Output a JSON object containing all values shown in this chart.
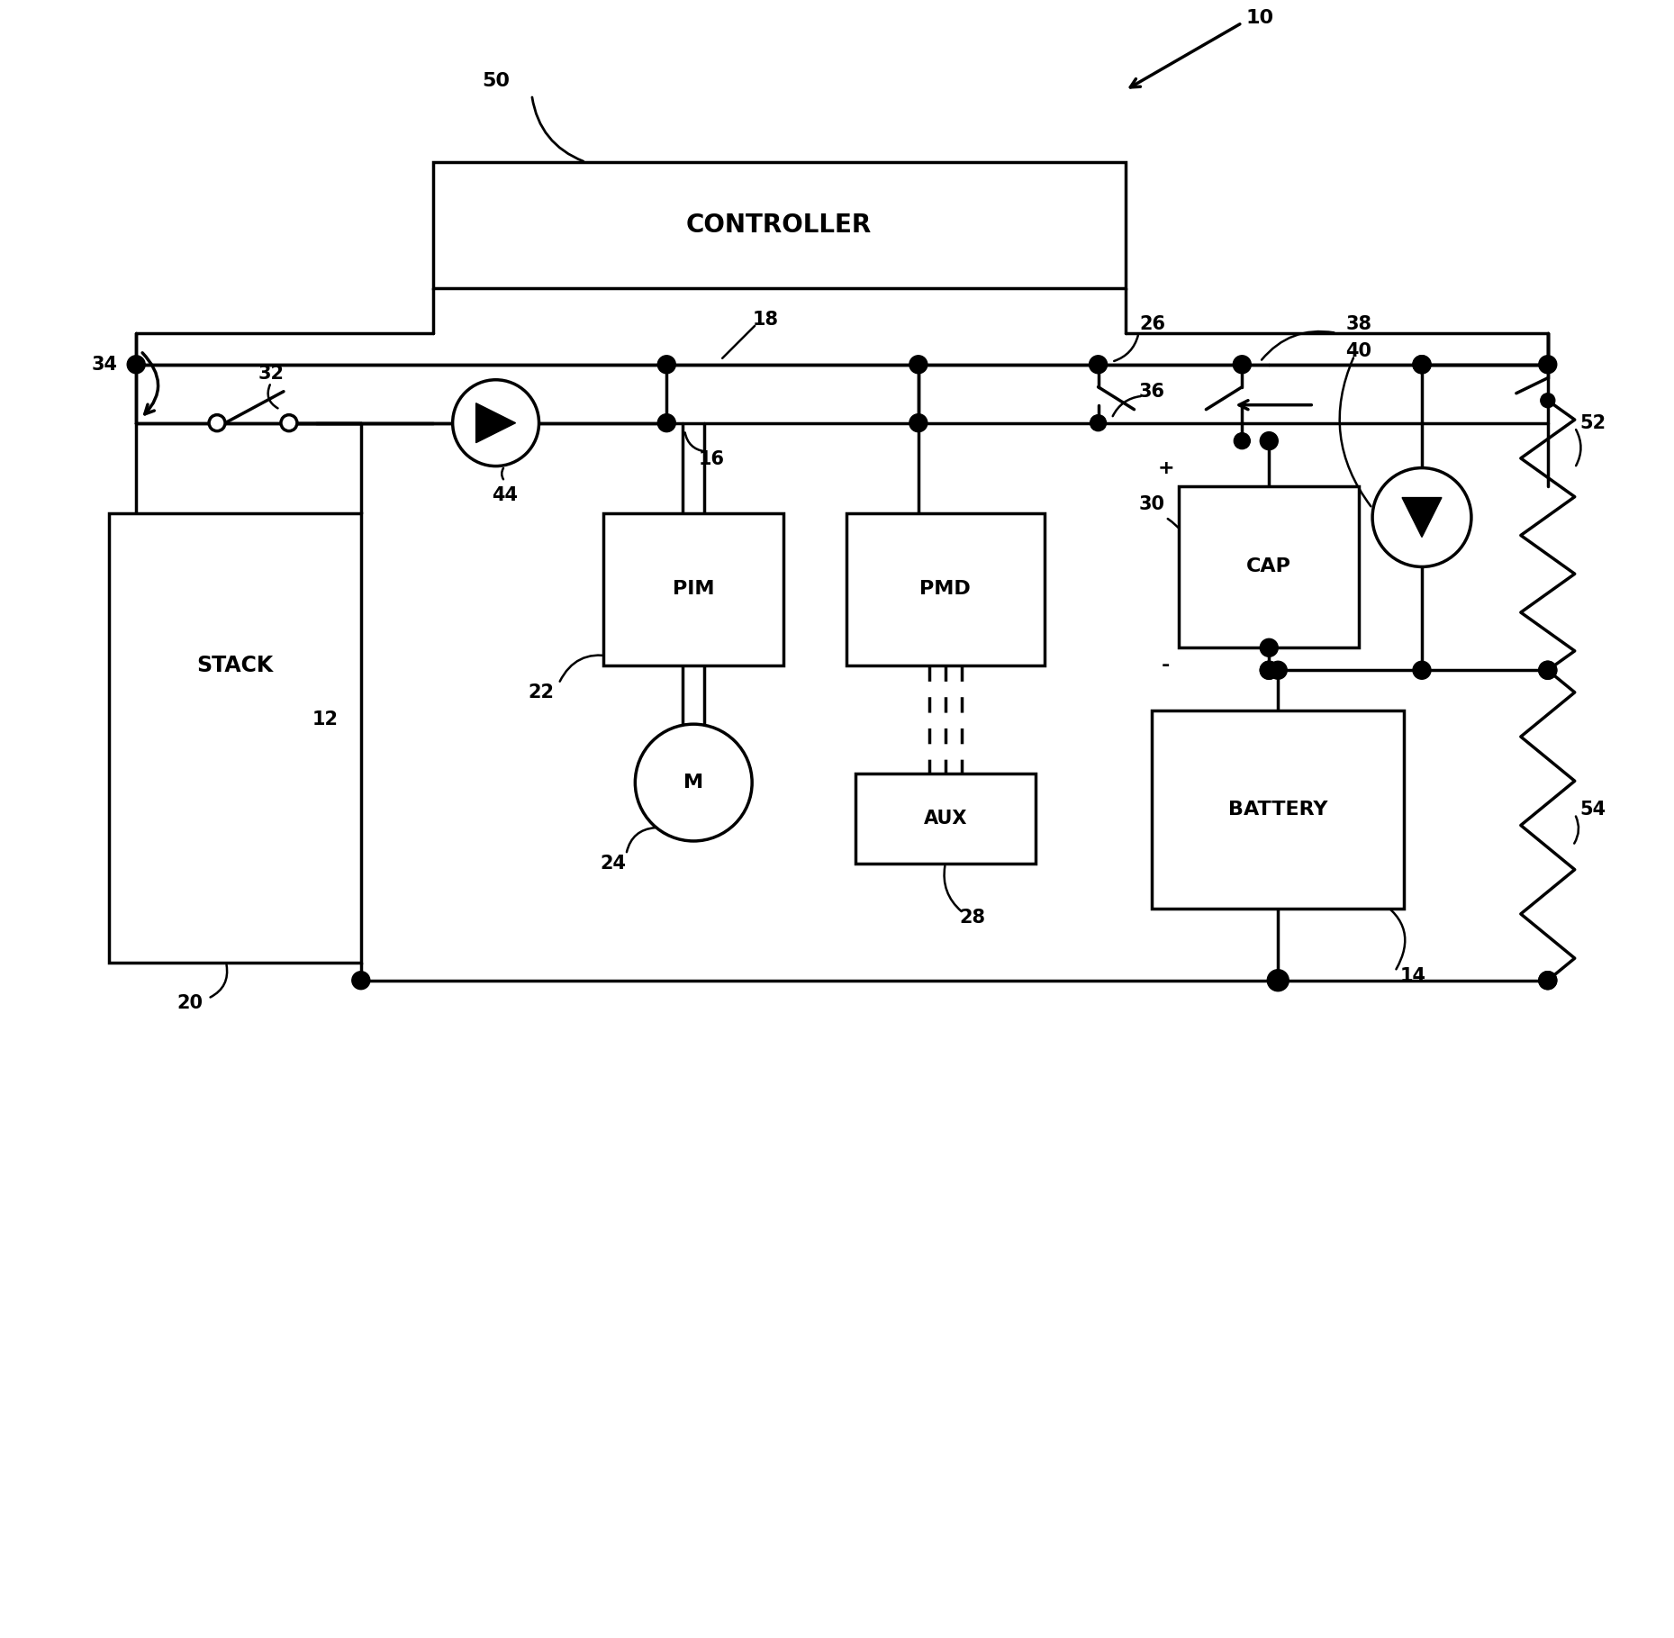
{
  "bg_color": "#ffffff",
  "line_color": "#000000",
  "lw": 2.5,
  "figsize": [
    18.59,
    18.19
  ],
  "dpi": 100,
  "xlim": [
    0,
    18.59
  ],
  "ylim": [
    0,
    18.19
  ]
}
